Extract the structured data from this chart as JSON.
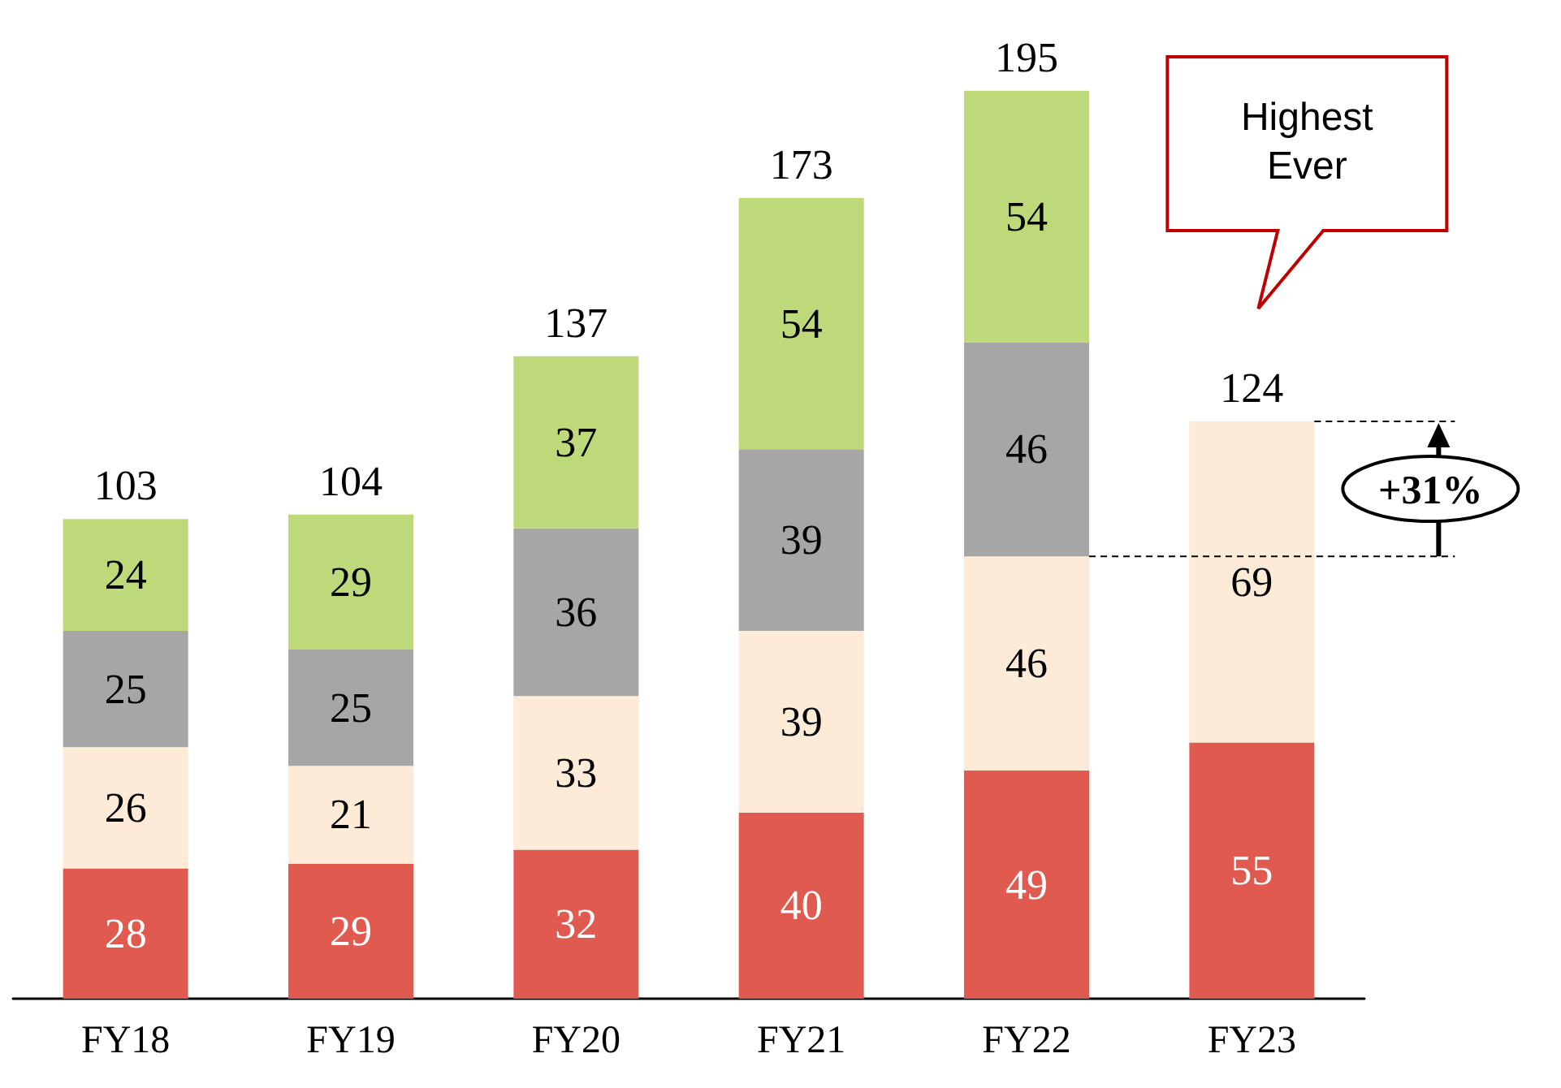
{
  "chart_data": {
    "type": "bar",
    "stacked": true,
    "data_labels": true,
    "categories": [
      "FY18",
      "FY19",
      "FY20",
      "FY21",
      "FY22",
      "FY23"
    ],
    "series": [
      {
        "color": "#e05a4f",
        "values": [
          28,
          29,
          32,
          40,
          49,
          55
        ]
      },
      {
        "color": "#fdebd7",
        "values": [
          26,
          21,
          33,
          39,
          46,
          69
        ]
      },
      {
        "color": "#a6a6a6",
        "values": [
          25,
          25,
          36,
          39,
          46,
          null
        ]
      },
      {
        "color": "#bdd97a",
        "values": [
          24,
          29,
          37,
          54,
          54,
          null
        ]
      }
    ],
    "totals": [
      "103",
      "104",
      "137",
      "173",
      "195",
      "124"
    ],
    "annotations": [
      "Highest Ever",
      "+31%"
    ]
  }
}
